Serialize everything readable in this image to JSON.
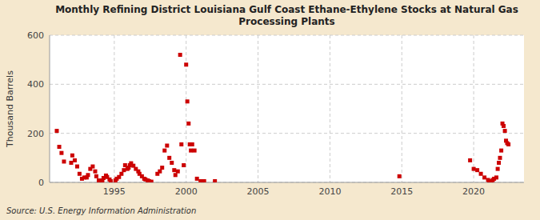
{
  "chart_data": {
    "type": "scatter",
    "title": "Monthly Refining District Louisiana Gulf Coast Ethane-Ethylene Stocks at Natural Gas\nProcessing Plants",
    "ylabel": "Thousand Barrels",
    "annotations": [
      "Source: U.S. Energy Information Administration"
    ],
    "color": "#cc0000",
    "marker": "square",
    "grid": true,
    "xlim": [
      1990.5,
      2023.5
    ],
    "ylim": [
      0,
      600
    ],
    "xticks": [
      1995,
      2000,
      2005,
      2010,
      2015,
      2020
    ],
    "yticks": [
      0,
      200,
      400,
      600
    ],
    "x": [
      1991.0,
      1991.17,
      1991.33,
      1991.5,
      1992.0,
      1992.08,
      1992.25,
      1992.42,
      1992.58,
      1992.75,
      1992.92,
      1993.08,
      1993.17,
      1993.33,
      1993.5,
      1993.67,
      1993.75,
      1993.92,
      1994.0,
      1994.17,
      1994.25,
      1994.42,
      1994.5,
      1994.67,
      1994.75,
      1995.08,
      1995.17,
      1995.33,
      1995.5,
      1995.67,
      1995.75,
      1995.92,
      1996.0,
      1996.08,
      1996.17,
      1996.33,
      1996.5,
      1996.67,
      1996.75,
      1996.92,
      1997.08,
      1997.17,
      1997.33,
      1997.42,
      1997.58,
      1998.0,
      1998.17,
      1998.33,
      1998.5,
      1998.67,
      1998.83,
      1999.0,
      1999.17,
      1999.25,
      1999.42,
      1999.58,
      1999.67,
      1999.83,
      2000.0,
      2000.08,
      2000.17,
      2000.25,
      2000.33,
      2000.42,
      2000.58,
      2000.75,
      2001.0,
      2001.25,
      2002.0,
      2014.83,
      2019.75,
      2020.0,
      2020.25,
      2020.5,
      2020.75,
      2021.0,
      2021.08,
      2021.17,
      2021.25,
      2021.33,
      2021.42,
      2021.58,
      2021.67,
      2021.75,
      2021.83,
      2021.92,
      2022.0,
      2022.08,
      2022.17,
      2022.25,
      2022.33,
      2022.42
    ],
    "values": [
      210,
      145,
      120,
      85,
      80,
      110,
      90,
      65,
      35,
      15,
      20,
      20,
      30,
      55,
      65,
      45,
      25,
      8,
      5,
      8,
      18,
      28,
      22,
      12,
      5,
      8,
      15,
      22,
      35,
      50,
      70,
      55,
      60,
      70,
      78,
      68,
      55,
      45,
      35,
      25,
      15,
      12,
      8,
      5,
      3,
      35,
      45,
      60,
      130,
      150,
      100,
      80,
      50,
      30,
      45,
      520,
      155,
      70,
      480,
      330,
      240,
      155,
      130,
      155,
      130,
      15,
      5,
      5,
      5,
      25,
      90,
      55,
      50,
      35,
      20,
      10,
      5,
      3,
      5,
      10,
      15,
      20,
      55,
      80,
      100,
      130,
      240,
      230,
      210,
      170,
      160,
      155
    ]
  }
}
